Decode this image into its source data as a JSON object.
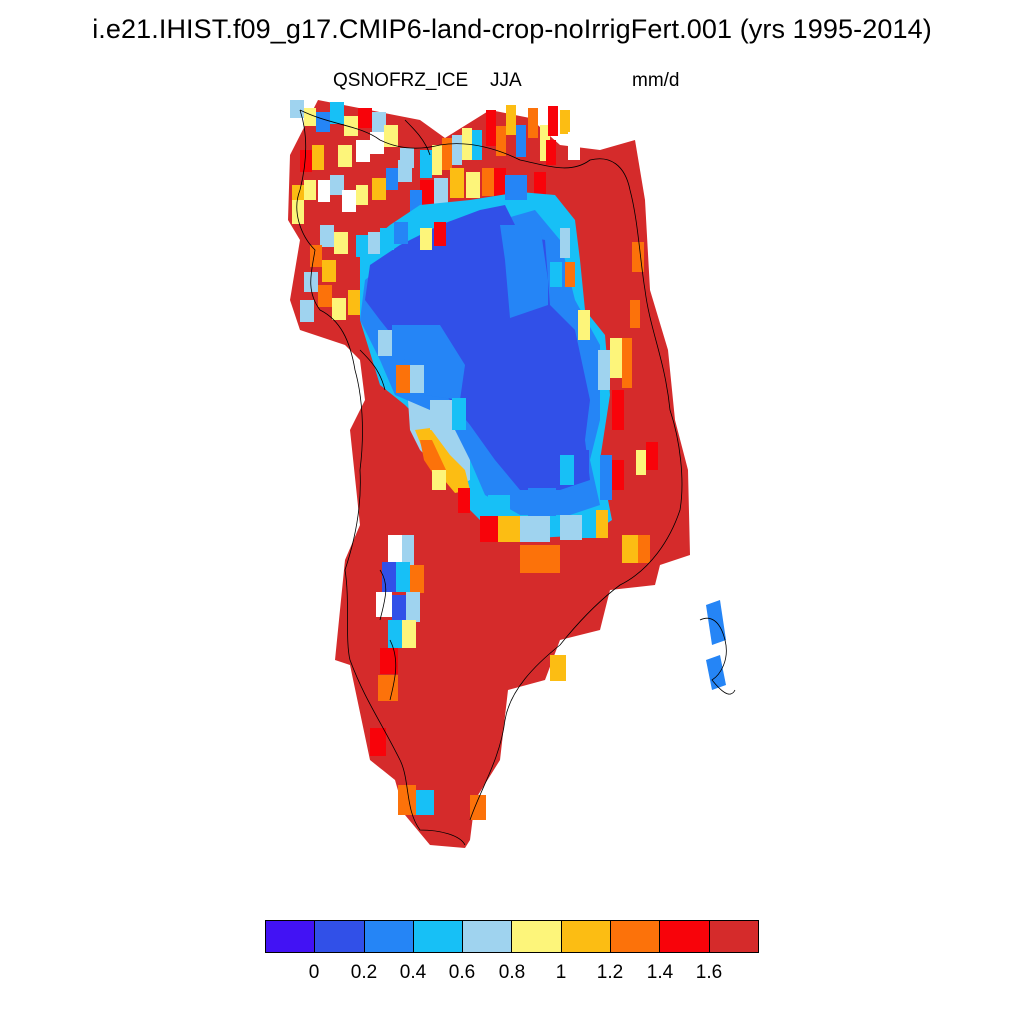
{
  "title": "i.e21.IHIST.f09_g17.CMIP6-land-crop-noIrrigFert.001 (yrs 1995-2014)",
  "variable": "QSNOFRZ_ICE",
  "season": "JJA",
  "units": "mm/d",
  "colorbar": {
    "colors": [
      "#4212f4",
      "#3150e8",
      "#2585f6",
      "#17c0f6",
      "#9fd3ef",
      "#fdf57a",
      "#fcbd13",
      "#fc720a",
      "#f8030a",
      "#d52b2b"
    ],
    "tick_labels": [
      "0",
      "0.2",
      "0.4",
      "0.6",
      "0.8",
      "1",
      "1.2",
      "1.4",
      "1.6"
    ]
  }
}
